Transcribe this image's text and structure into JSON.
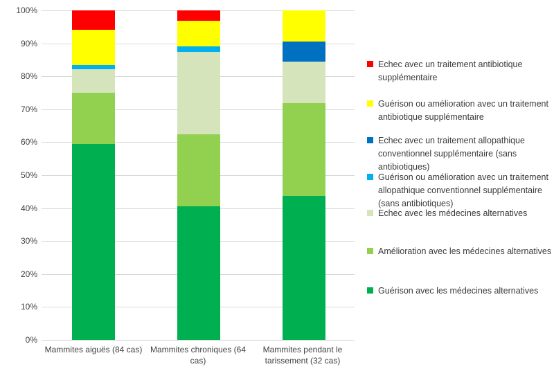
{
  "chart_data": {
    "type": "bar",
    "stacked": true,
    "percent": true,
    "title": "",
    "xlabel": "",
    "ylabel": "",
    "ylim": [
      0,
      100
    ],
    "grid": true,
    "legend_position": "right",
    "y_ticks": [
      "100%",
      "90%",
      "80%",
      "70%",
      "60%",
      "50%",
      "40%",
      "30%",
      "20%",
      "10%",
      "0%"
    ],
    "categories": [
      "Mammites aiguës (84 cas)",
      "Mammites chroniques (64 cas)",
      "Mammites pendant le tarissement (32 cas)"
    ],
    "series": [
      {
        "name": "Guérison avec les médecines alternatives",
        "color": "#00B050",
        "values": [
          59.52,
          40.63,
          43.75
        ]
      },
      {
        "name": "Amélioration avec les médecines alternatives",
        "color": "#92D050",
        "values": [
          15.48,
          21.87,
          28.13
        ]
      },
      {
        "name": "Echec avec les médecines alternatives",
        "color": "#D6E4BC",
        "values": [
          7.14,
          25.0,
          12.5
        ]
      },
      {
        "name": "Guérison ou amélioration avec un traitement allopathique conventionnel supplémentaire (sans antibiotiques)",
        "color": "#00B0F0",
        "values": [
          1.19,
          1.56,
          0
        ]
      },
      {
        "name": "Echec avec un traitement allopathique conventionnel supplémentaire (sans antibiotiques)",
        "color": "#0070C0",
        "values": [
          0,
          0,
          6.25
        ]
      },
      {
        "name": "Guérison ou amélioration avec un traitement antibiotique supplémentaire",
        "color": "#FFFF00",
        "values": [
          10.71,
          7.81,
          9.37
        ]
      },
      {
        "name": "Echec avec un traitement antibiotique supplémentaire",
        "color": "#FF0000",
        "values": [
          5.96,
          3.13,
          0
        ]
      }
    ],
    "legend_order": [
      6,
      5,
      4,
      3,
      2,
      1,
      0
    ]
  },
  "colors": {
    "gridline": "#D9D9D9",
    "axis_text": "#404040",
    "background": "#FFFFFF"
  }
}
